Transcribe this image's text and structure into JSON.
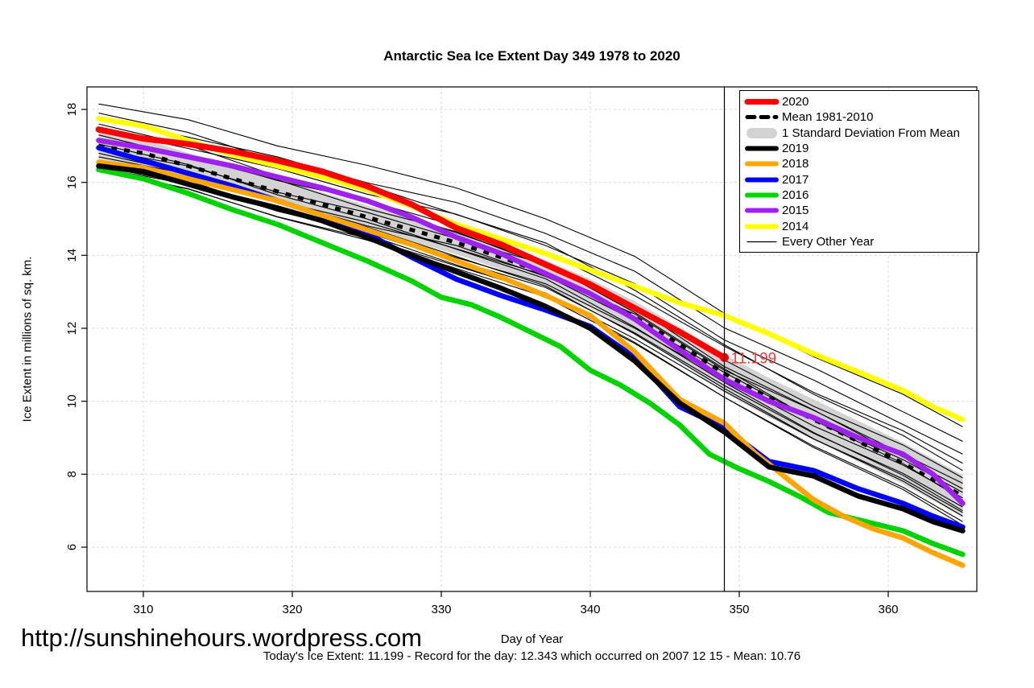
{
  "title": "Antarctic Sea Ice Extent Day 349 1978 to 2020",
  "site_url": "http://sunshinehours.wordpress.com",
  "footer": {
    "caption": "Today's Ice Extent: 11.199  - Record for the day: 12.343 which occurred on 2007 12 15  - Mean: 10.76",
    "todays_extent": "11.199",
    "record_for_day": "12.343",
    "record_date": "2007 12 15",
    "mean": "10.76"
  },
  "colors": {
    "red": "#FF0000",
    "orange": "#FFA500",
    "blue": "#0000FF",
    "green": "#00D400",
    "purple": "#A020F0",
    "yellow": "#FFFF00",
    "black": "#000000",
    "band_gray": "#D3D3D3",
    "grid_gray": "#D8D8D8",
    "annotation_red": "#EF3B3B"
  },
  "legend": [
    {
      "label": "2020",
      "type": "line",
      "color": "#FF0000",
      "width": 7
    },
    {
      "label": "Mean 1981-2010",
      "type": "dashed",
      "color": "#000000",
      "width": 5
    },
    {
      "label": "1 Standard Deviation From Mean",
      "type": "band",
      "color": "#D3D3D3"
    },
    {
      "label": "2019",
      "type": "line",
      "color": "#000000",
      "width": 6
    },
    {
      "label": "2018",
      "type": "line",
      "color": "#FFA500",
      "width": 6
    },
    {
      "label": "2017",
      "type": "line",
      "color": "#0000FF",
      "width": 6
    },
    {
      "label": "2016",
      "type": "line",
      "color": "#00D400",
      "width": 6
    },
    {
      "label": "2015",
      "type": "line",
      "color": "#A020F0",
      "width": 6
    },
    {
      "label": "2014",
      "type": "line",
      "color": "#FFFF00",
      "width": 6
    },
    {
      "label": "Every Other Year",
      "type": "line",
      "color": "#000000",
      "width": 1.2
    }
  ],
  "chart_data": {
    "type": "line",
    "title": "Antarctic Sea Ice Extent Day 349 1978 to 2020",
    "xlabel": "Day of Year",
    "ylabel": "Ice Extent in millions of sq. km.",
    "x_ticks": [
      310,
      320,
      330,
      340,
      350,
      360
    ],
    "y_ticks": [
      6,
      8,
      10,
      12,
      14,
      16,
      18
    ],
    "xlim": [
      306.2,
      366.0
    ],
    "ylim": [
      4.8,
      18.6
    ],
    "grid": true,
    "legend_position": "top-right",
    "vline_day": 349,
    "annotation": {
      "text": "11.199",
      "day": 349,
      "value": 11.199
    },
    "band": {
      "name": "1 Standard Deviation From Mean",
      "x": [
        307,
        310,
        313,
        316,
        319,
        322,
        325,
        328,
        331,
        334,
        337,
        340,
        343,
        346,
        349,
        352,
        355,
        358,
        361,
        363,
        365
      ],
      "upper": [
        17.38,
        17.18,
        16.81,
        16.45,
        16.09,
        15.73,
        15.37,
        15.02,
        14.67,
        14.29,
        13.86,
        13.35,
        12.74,
        12.03,
        11.28,
        10.64,
        10.05,
        9.46,
        8.87,
        8.42,
        7.98
      ],
      "lower": [
        16.62,
        16.42,
        16.09,
        15.75,
        15.41,
        15.07,
        14.73,
        14.38,
        14.03,
        13.61,
        13.14,
        12.55,
        11.86,
        11.07,
        10.24,
        9.56,
        8.95,
        8.34,
        7.73,
        7.28,
        6.82
      ]
    },
    "mean_series": {
      "name": "Mean 1981-2010",
      "color": "#000000",
      "width": 5,
      "dash": "7 9",
      "x": [
        307,
        310,
        313,
        316,
        319,
        322,
        325,
        328,
        331,
        334,
        337,
        340,
        343,
        346,
        349,
        352,
        355,
        358,
        361,
        363,
        365
      ],
      "y": [
        17.0,
        16.8,
        16.45,
        16.1,
        15.75,
        15.4,
        15.05,
        14.7,
        14.35,
        13.95,
        13.5,
        12.95,
        12.3,
        11.55,
        10.76,
        10.1,
        9.5,
        8.9,
        8.3,
        7.85,
        7.4
      ]
    },
    "series": [
      {
        "name": "2014",
        "color": "#FFFF00",
        "width": 6.5,
        "x": [
          307,
          310,
          313,
          316,
          319,
          322,
          325,
          328,
          331,
          334,
          337,
          340,
          343,
          346,
          349,
          352,
          355,
          358,
          361,
          363,
          365
        ],
        "y": [
          17.75,
          17.55,
          17.15,
          16.75,
          16.45,
          16.15,
          15.8,
          15.35,
          14.85,
          14.45,
          14.05,
          13.6,
          13.15,
          12.7,
          12.35,
          11.85,
          11.3,
          10.8,
          10.3,
          9.85,
          9.5
        ]
      },
      {
        "name": "2015",
        "color": "#A020F0",
        "width": 6.5,
        "x": [
          307,
          310,
          313,
          316,
          319,
          322,
          325,
          328,
          331,
          334,
          337,
          340,
          343,
          346,
          349,
          352,
          355,
          358,
          361,
          363,
          365
        ],
        "y": [
          17.15,
          16.95,
          16.7,
          16.45,
          16.15,
          15.85,
          15.5,
          15.05,
          14.5,
          14.05,
          13.5,
          12.95,
          12.25,
          11.4,
          10.6,
          10.0,
          9.55,
          9.0,
          8.55,
          8.0,
          7.2
        ]
      },
      {
        "name": "2016",
        "color": "#00D400",
        "width": 6.5,
        "x": [
          307,
          310,
          313,
          316,
          319,
          322,
          325,
          328,
          330,
          332,
          334,
          336,
          338,
          340,
          342,
          344,
          346,
          348,
          350,
          352,
          354,
          356,
          358,
          361,
          363,
          365
        ],
        "y": [
          16.35,
          16.1,
          15.7,
          15.25,
          14.85,
          14.35,
          13.85,
          13.3,
          12.85,
          12.65,
          12.3,
          11.9,
          11.5,
          10.85,
          10.45,
          9.95,
          9.35,
          8.55,
          8.15,
          7.8,
          7.4,
          6.95,
          6.75,
          6.45,
          6.1,
          5.8
        ]
      },
      {
        "name": "2017",
        "color": "#0000FF",
        "width": 6.5,
        "x": [
          307,
          310,
          313,
          316,
          319,
          322,
          325,
          328,
          331,
          334,
          337,
          340,
          343,
          346,
          349,
          352,
          355,
          358,
          361,
          363,
          365
        ],
        "y": [
          16.95,
          16.6,
          16.25,
          15.9,
          15.5,
          15.1,
          14.6,
          13.95,
          13.35,
          12.9,
          12.5,
          12.05,
          11.2,
          9.85,
          9.27,
          8.35,
          8.1,
          7.6,
          7.2,
          6.85,
          6.55
        ]
      },
      {
        "name": "2018",
        "color": "#FFA500",
        "width": 6.5,
        "x": [
          307,
          310,
          313,
          316,
          319,
          322,
          325,
          328,
          331,
          334,
          337,
          340,
          343,
          346,
          349,
          351,
          353,
          355,
          357,
          359,
          361,
          363,
          365
        ],
        "y": [
          16.55,
          16.4,
          16.1,
          15.8,
          15.5,
          15.1,
          14.7,
          14.3,
          13.85,
          13.4,
          12.9,
          12.35,
          11.35,
          10.05,
          9.4,
          8.6,
          7.95,
          7.3,
          6.85,
          6.5,
          6.25,
          5.85,
          5.5
        ]
      },
      {
        "name": "2019",
        "color": "#000000",
        "width": 6.5,
        "x": [
          307,
          310,
          313,
          316,
          319,
          322,
          325,
          328,
          331,
          334,
          337,
          340,
          343,
          346,
          349,
          352,
          355,
          358,
          361,
          363,
          365
        ],
        "y": [
          16.45,
          16.3,
          15.95,
          15.6,
          15.3,
          14.95,
          14.5,
          14.0,
          13.55,
          13.1,
          12.6,
          12.0,
          11.1,
          9.95,
          9.16,
          8.2,
          7.95,
          7.4,
          7.05,
          6.7,
          6.45
        ]
      },
      {
        "name": "2020",
        "color": "#FF0000",
        "width": 7.5,
        "end_dot": true,
        "x": [
          307,
          310,
          313,
          316,
          319,
          322,
          325,
          328,
          331,
          334,
          337,
          340,
          343,
          346,
          349
        ],
        "y": [
          17.45,
          17.2,
          17.05,
          16.85,
          16.6,
          16.3,
          15.9,
          15.4,
          14.75,
          14.3,
          13.75,
          13.2,
          12.55,
          11.9,
          11.199
        ]
      }
    ],
    "background_years": {
      "name": "Every Other Year",
      "color": "#000000",
      "width": 1.1,
      "x": [
        307,
        313,
        319,
        325,
        331,
        337,
        343,
        349,
        355,
        361,
        365
      ],
      "lines": [
        [
          18.15,
          17.72,
          17.0,
          16.47,
          15.85,
          15.0,
          13.97,
          12.41,
          11.22,
          10.19,
          9.3
        ],
        [
          17.9,
          17.37,
          16.57,
          15.93,
          15.12,
          14.34,
          13.04,
          11.55,
          10.19,
          9.06,
          8.1
        ],
        [
          17.75,
          17.24,
          16.7,
          15.99,
          15.45,
          14.6,
          13.56,
          12.01,
          10.92,
          9.71,
          8.9
        ],
        [
          17.6,
          17.02,
          16.17,
          15.47,
          14.62,
          13.78,
          12.43,
          10.89,
          9.48,
          8.29,
          7.3
        ],
        [
          17.45,
          16.93,
          16.38,
          15.68,
          15.13,
          14.27,
          13.22,
          11.68,
          10.58,
          9.36,
          8.55
        ],
        [
          17.3,
          16.7,
          16.07,
          15.28,
          14.65,
          13.71,
          12.58,
          10.95,
          9.76,
          8.47,
          7.6
        ],
        [
          17.2,
          16.76,
          16.05,
          15.51,
          14.8,
          14.1,
          12.89,
          11.51,
          10.24,
          9.19,
          8.3
        ],
        [
          17.05,
          16.49,
          15.66,
          15.0,
          14.17,
          13.36,
          12.03,
          10.52,
          9.14,
          7.97,
          7.0
        ],
        [
          16.9,
          16.45,
          15.73,
          15.18,
          14.46,
          13.75,
          12.53,
          11.13,
          9.86,
          8.8,
          7.9
        ],
        [
          16.8,
          16.25,
          15.44,
          14.78,
          13.97,
          13.16,
          11.84,
          10.35,
          8.97,
          7.81,
          6.85
        ],
        [
          16.7,
          16.23,
          15.49,
          14.91,
          14.18,
          13.45,
          12.21,
          10.79,
          9.49,
          8.4,
          7.5
        ],
        [
          16.6,
          16.05,
          15.23,
          14.57,
          13.74,
          12.93,
          11.61,
          10.11,
          8.73,
          7.58,
          6.6
        ],
        [
          16.55,
          16.04,
          15.5,
          14.81,
          14.27,
          13.42,
          12.39,
          10.85,
          9.75,
          8.55,
          7.75
        ],
        [
          16.45,
          15.97,
          15.21,
          14.62,
          13.86,
          13.12,
          11.87,
          10.43,
          9.12,
          8.02,
          7.1
        ],
        [
          16.4,
          15.95,
          15.22,
          14.66,
          13.94,
          13.22,
          12.0,
          10.6,
          9.32,
          8.25,
          7.35
        ],
        [
          16.35,
          15.83,
          15.05,
          14.42,
          13.64,
          12.86,
          11.58,
          10.11,
          8.77,
          7.64,
          6.7
        ],
        [
          16.3,
          15.82,
          15.06,
          14.47,
          13.71,
          12.97,
          11.71,
          10.28,
          8.96,
          7.87,
          6.95
        ]
      ]
    }
  }
}
